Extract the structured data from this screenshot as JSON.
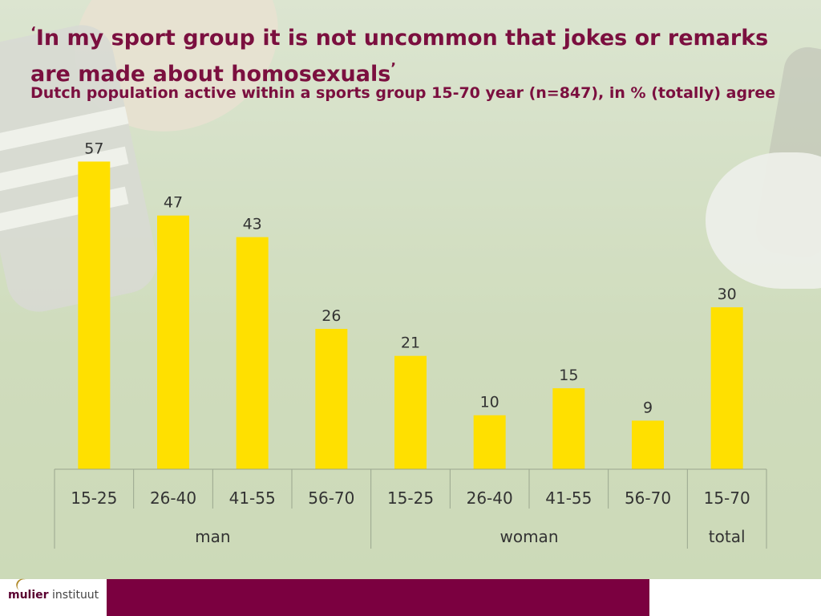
{
  "title": {
    "open_quote": "‘",
    "text": "In my sport group it is not uncommon that jokes or remarks are made about homosexuals",
    "close_quote": "’"
  },
  "subtitle": "Dutch population active within a sports group 15-70 year (n=847), in % (totally) agree",
  "chart_data": {
    "type": "bar",
    "categories": [
      "15-25",
      "26-40",
      "41-55",
      "56-70",
      "15-25",
      "26-40",
      "41-55",
      "56-70",
      "15-70"
    ],
    "groups": [
      {
        "label": "man",
        "categories": [
          "15-25",
          "26-40",
          "41-55",
          "56-70"
        ]
      },
      {
        "label": "woman",
        "categories": [
          "15-25",
          "26-40",
          "41-55",
          "56-70"
        ]
      },
      {
        "label": "total",
        "categories": [
          "15-70"
        ]
      }
    ],
    "values": [
      57,
      47,
      43,
      26,
      21,
      10,
      15,
      9,
      30
    ],
    "data_labels": true,
    "ylim": [
      0,
      60
    ],
    "bar_color": "#ffe000",
    "grid": false,
    "legend": "none"
  },
  "footer": {
    "logo_bold": "mulier",
    "logo_light": " instituut",
    "bar_color": "#7b0040"
  }
}
